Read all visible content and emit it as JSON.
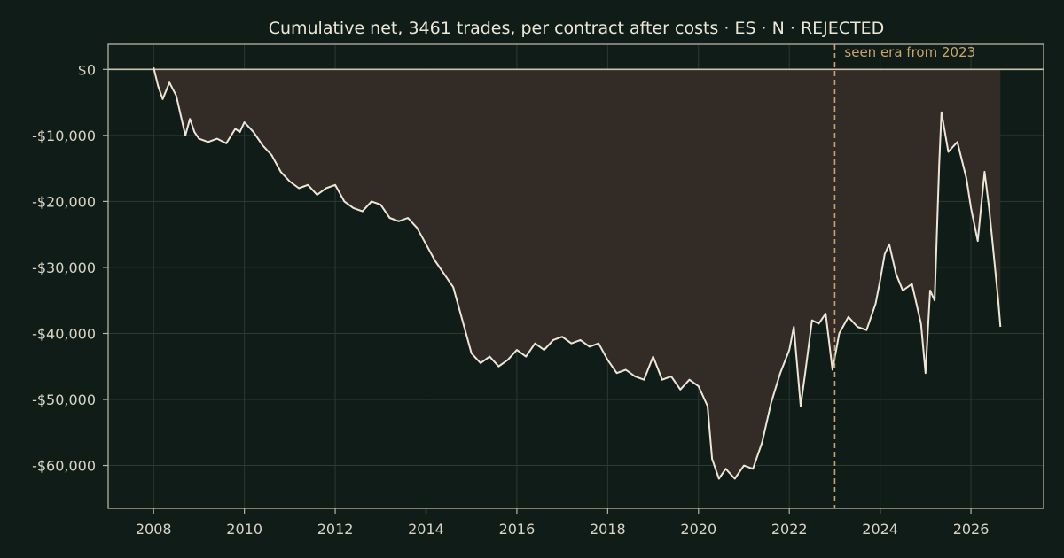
{
  "colors": {
    "background": "#0f1c17",
    "axis": "#b8b3a3",
    "text": "#d9d4c5",
    "title": "#ece7d8",
    "grid": "#2c3a33",
    "line": "#ede6d6",
    "fill": "#322b26",
    "zero_line": "#c9c3b3",
    "era_marker": "#c9a46a"
  },
  "chart_data": {
    "type": "line",
    "title": "Cumulative net, 3461 trades, per contract after costs  ·  ES · N · REJECTED",
    "xlabel": "",
    "ylabel": "",
    "grid": true,
    "x_ticks": [
      "2008",
      "2010",
      "2012",
      "2014",
      "2016",
      "2018",
      "2020",
      "2022",
      "2024",
      "2026"
    ],
    "x_tick_values": [
      2008,
      2010,
      2012,
      2014,
      2016,
      2018,
      2020,
      2022,
      2024,
      2026
    ],
    "y_ticks": [
      "$0",
      "-$10,000",
      "-$20,000",
      "-$30,000",
      "-$40,000",
      "-$50,000",
      "-$60,000"
    ],
    "y_tick_values": [
      0,
      -10000,
      -20000,
      -30000,
      -40000,
      -50000,
      -60000
    ],
    "xlim": [
      2007.0,
      2027.6
    ],
    "ylim": [
      -66500,
      3800
    ],
    "fill_to_zero": true,
    "annotation": {
      "text": "seen era from 2023",
      "x": 2023.0
    },
    "series": [
      {
        "x": [
          2008.0,
          2008.1,
          2008.2,
          2008.35,
          2008.5,
          2008.6,
          2008.7,
          2008.8,
          2008.9,
          2009.0,
          2009.2,
          2009.4,
          2009.6,
          2009.8,
          2009.9,
          2010.0,
          2010.2,
          2010.4,
          2010.6,
          2010.8,
          2011.0,
          2011.2,
          2011.4,
          2011.6,
          2011.8,
          2012.0,
          2012.2,
          2012.4,
          2012.6,
          2012.8,
          2013.0,
          2013.2,
          2013.4,
          2013.6,
          2013.8,
          2014.0,
          2014.2,
          2014.4,
          2014.6,
          2014.8,
          2015.0,
          2015.2,
          2015.4,
          2015.6,
          2015.8,
          2016.0,
          2016.2,
          2016.4,
          2016.6,
          2016.8,
          2017.0,
          2017.2,
          2017.4,
          2017.6,
          2017.8,
          2018.0,
          2018.2,
          2018.4,
          2018.6,
          2018.8,
          2019.0,
          2019.2,
          2019.4,
          2019.6,
          2019.8,
          2020.0,
          2020.2,
          2020.3,
          2020.45,
          2020.6,
          2020.8,
          2021.0,
          2021.2,
          2021.4,
          2021.6,
          2021.8,
          2022.0,
          2022.1,
          2022.25,
          2022.35,
          2022.5,
          2022.65,
          2022.8,
          2022.95,
          2023.1,
          2023.3,
          2023.5,
          2023.7,
          2023.9,
          2024.0,
          2024.1,
          2024.2,
          2024.35,
          2024.5,
          2024.7,
          2024.9,
          2025.0,
          2025.1,
          2025.2,
          2025.3,
          2025.35,
          2025.5,
          2025.7,
          2025.9,
          2026.0,
          2026.15,
          2026.3,
          2026.4,
          2026.5,
          2026.6,
          2026.65
        ],
        "values": [
          300,
          -2500,
          -4500,
          -2000,
          -4000,
          -7000,
          -10000,
          -7500,
          -9500,
          -10500,
          -11000,
          -10500,
          -11200,
          -9000,
          -9500,
          -8000,
          -9500,
          -11500,
          -13000,
          -15500,
          -17000,
          -18000,
          -17500,
          -19000,
          -18000,
          -17500,
          -20000,
          -21000,
          -21500,
          -20000,
          -20500,
          -22500,
          -23000,
          -22500,
          -24000,
          -26500,
          -29000,
          -31000,
          -33000,
          -38000,
          -43000,
          -44500,
          -43500,
          -45000,
          -44000,
          -42500,
          -43500,
          -41500,
          -42500,
          -41000,
          -40500,
          -41500,
          -41000,
          -42000,
          -41500,
          -44000,
          -46000,
          -45500,
          -46500,
          -47000,
          -43500,
          -47000,
          -46500,
          -48500,
          -47000,
          -48000,
          -51000,
          -59000,
          -62000,
          -60500,
          -62000,
          -60000,
          -60500,
          -56500,
          -50500,
          -46000,
          -42500,
          -39000,
          -51000,
          -46000,
          -38000,
          -38500,
          -37000,
          -45500,
          -40000,
          -37500,
          -39000,
          -39500,
          -35500,
          -32000,
          -28000,
          -26500,
          -31000,
          -33500,
          -32500,
          -38500,
          -46000,
          -33500,
          -35000,
          -14500,
          -6500,
          -12500,
          -11000,
          -16500,
          -21000,
          -26000,
          -15500,
          -21000,
          -28000,
          -35000,
          -39000
        ]
      }
    ]
  }
}
